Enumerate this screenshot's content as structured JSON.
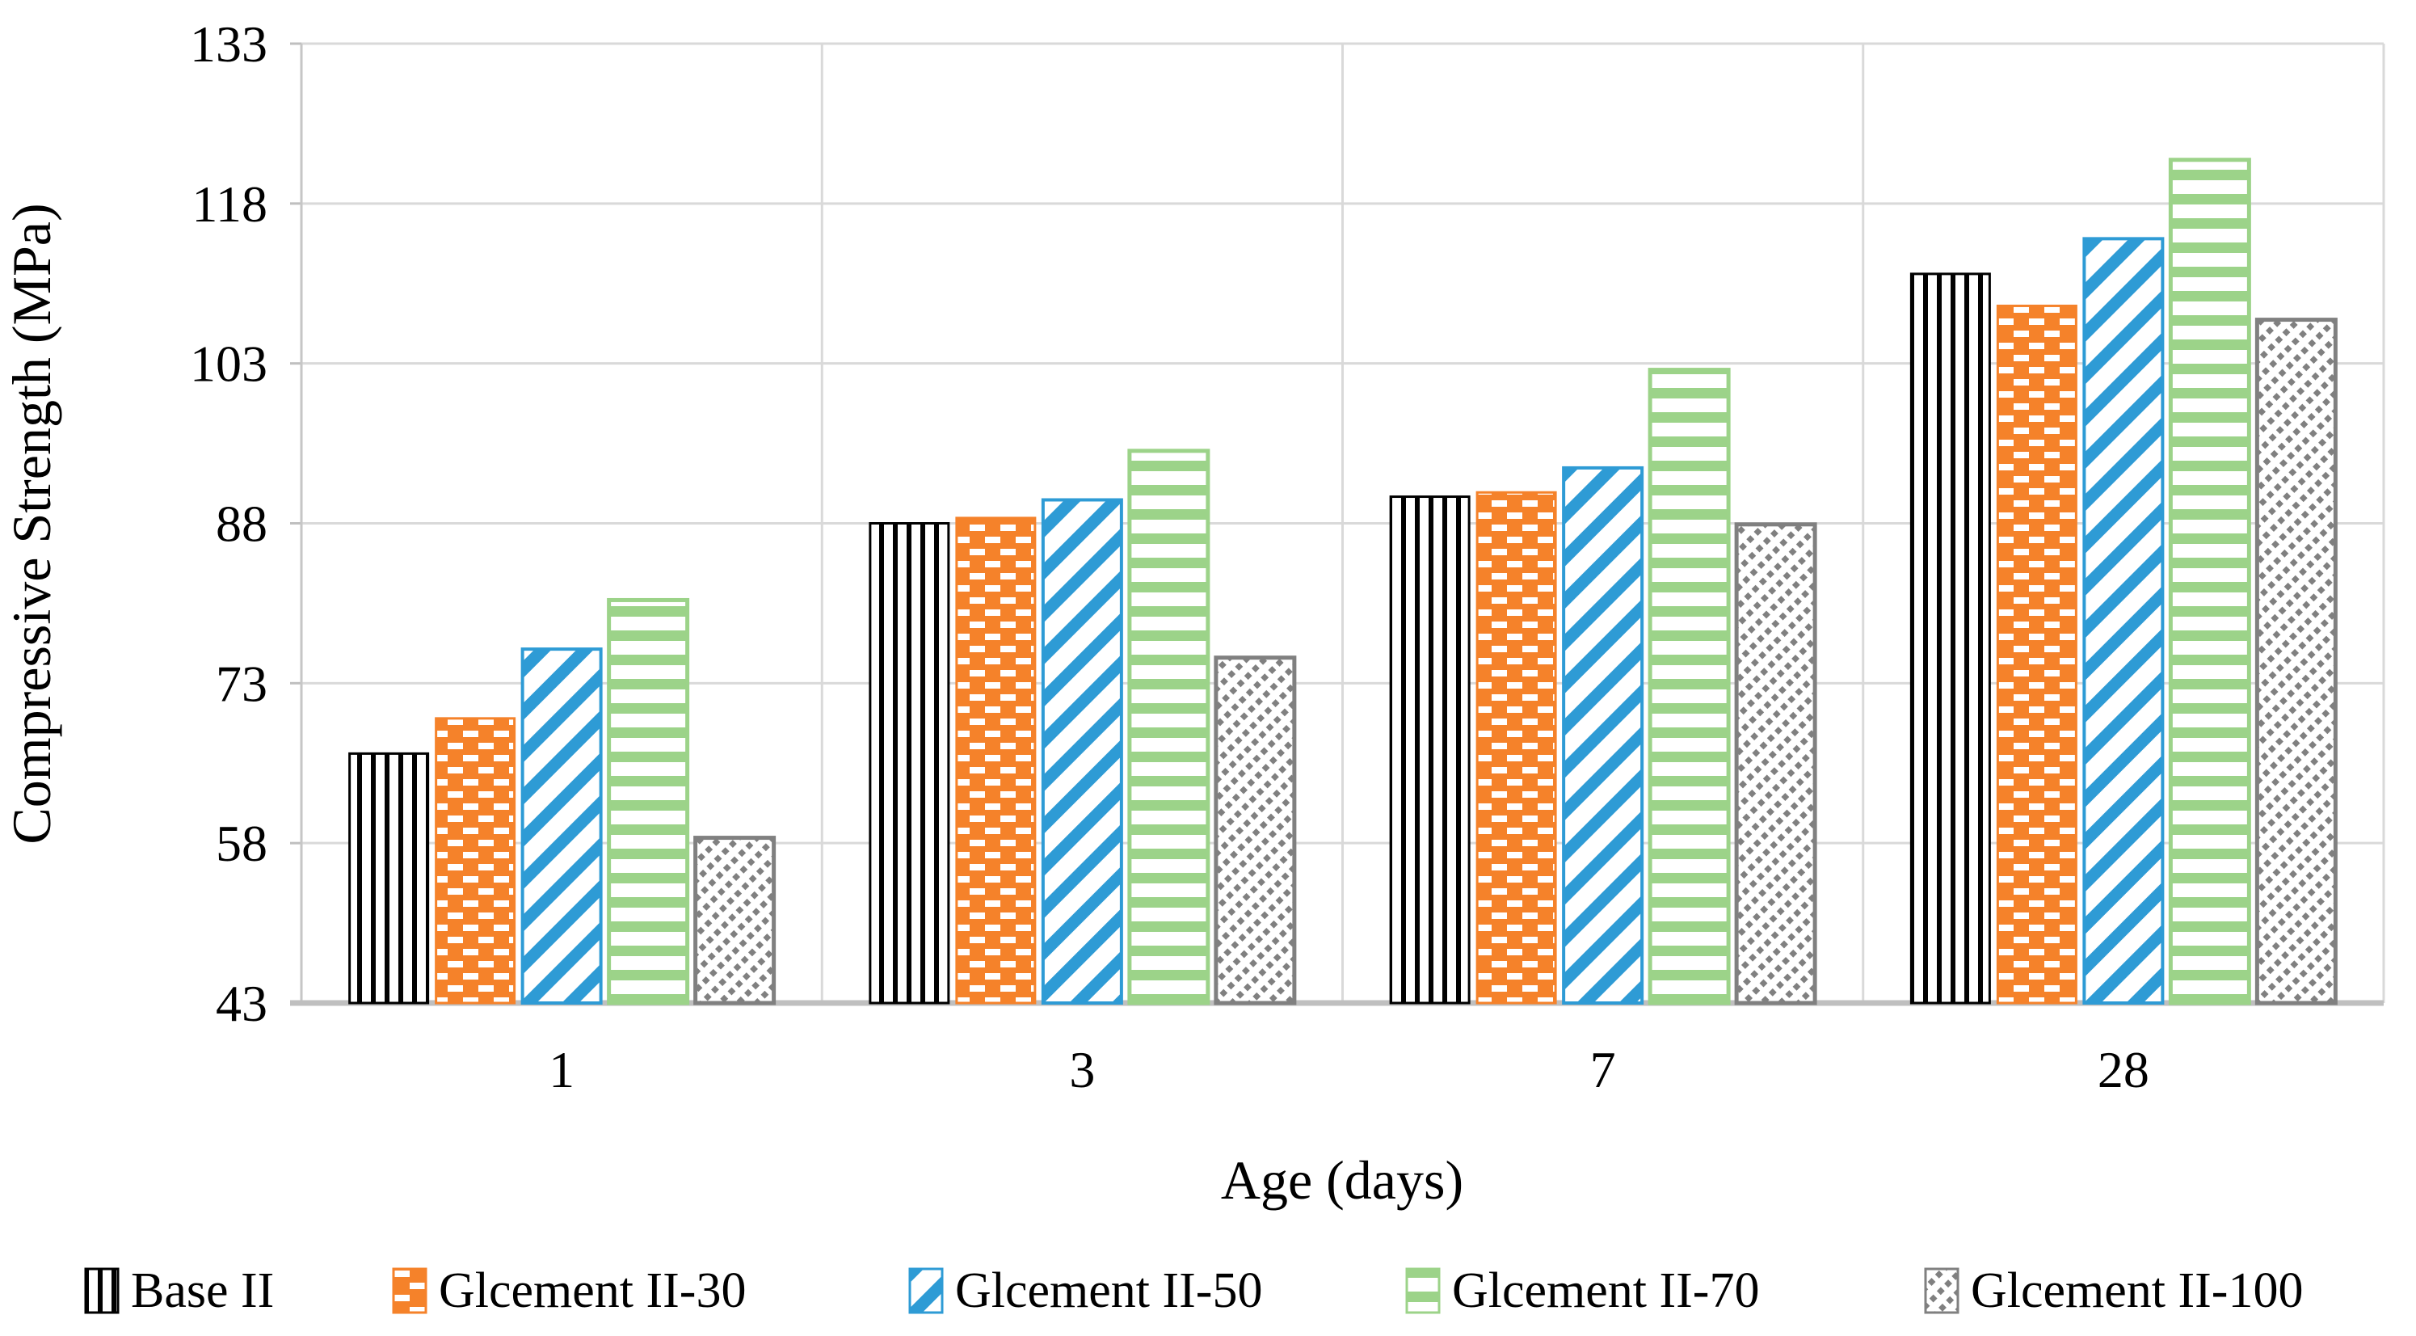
{
  "chart_data": {
    "type": "bar",
    "title": "",
    "xlabel": "Age (days)",
    "ylabel": "Compressive Strength (MPa)",
    "categories": [
      "1",
      "3",
      "7",
      "28"
    ],
    "series": [
      {
        "name": "Base II",
        "pattern": "vertical-stripes",
        "color": "#000000",
        "values": [
          66.4,
          88.0,
          90.5,
          111.4
        ]
      },
      {
        "name": "Glcement II-30",
        "pattern": "brick-dashes",
        "color": "#F5822A",
        "values": [
          69.7,
          88.5,
          90.9,
          108.4
        ]
      },
      {
        "name": "Glcement II-50",
        "pattern": "diagonal-up-stripes",
        "color": "#2E9BD5",
        "values": [
          76.2,
          90.2,
          93.2,
          114.7
        ]
      },
      {
        "name": "Glcement II-70",
        "pattern": "horizontal-stripes",
        "color": "#9CD389",
        "values": [
          80.8,
          94.8,
          102.4,
          122.1
        ]
      },
      {
        "name": "Glcement II-100",
        "pattern": "diagonal-down-dots",
        "color": "#808080",
        "values": [
          58.5,
          75.4,
          87.9,
          107.1
        ]
      }
    ],
    "ylim": [
      43,
      133
    ],
    "yticks": [
      43,
      58,
      73,
      88,
      103,
      118,
      133
    ],
    "grid": {
      "on": true,
      "gridline_color": "#D9D9D9",
      "axis_color": "#BFBFBF"
    },
    "legend_position": "bottom",
    "background_color": "#FFFFFF"
  }
}
